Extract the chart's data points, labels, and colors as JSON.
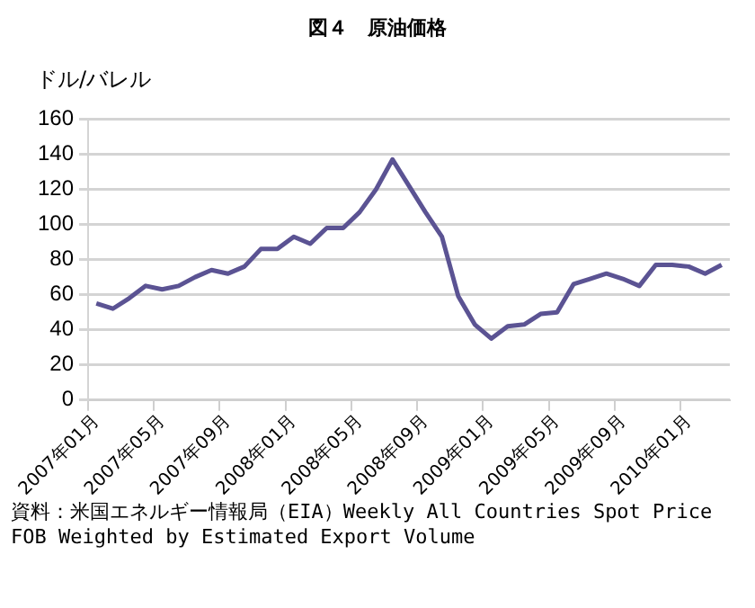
{
  "chart_data": {
    "type": "line",
    "title": "図４　原油価格",
    "ylabel": "ドル/バレル",
    "categories": [
      "2007年01月",
      null,
      null,
      null,
      "2007年05月",
      null,
      null,
      null,
      "2007年09月",
      null,
      null,
      null,
      "2008年01月",
      null,
      null,
      null,
      "2008年05月",
      null,
      null,
      null,
      "2008年09月",
      null,
      null,
      null,
      "2009年01月",
      null,
      null,
      null,
      "2009年05月",
      null,
      null,
      null,
      "2009年09月",
      null,
      null,
      null,
      "2010年01月",
      null,
      null
    ],
    "series": [
      {
        "color": "#5b5393",
        "values": [
          55,
          52,
          58,
          65,
          63,
          65,
          70,
          74,
          72,
          76,
          86,
          86,
          93,
          89,
          98,
          98,
          107,
          120,
          137,
          122,
          107,
          93,
          59,
          43,
          35,
          42,
          43,
          49,
          50,
          66,
          69,
          72,
          69,
          65,
          77,
          77,
          76,
          72,
          77
        ]
      }
    ],
    "ylim": [
      0,
      160
    ],
    "yticks": [
      0,
      20,
      40,
      60,
      80,
      100,
      120,
      140,
      160
    ],
    "grid": "y",
    "legend": false,
    "marker": "none",
    "line_style": "solid",
    "annotations": [
      "資料：米国エネルギー情報局（EIA）Weekly All Countries Spot Price FOB Weighted by Estimated Export Volume"
    ]
  }
}
